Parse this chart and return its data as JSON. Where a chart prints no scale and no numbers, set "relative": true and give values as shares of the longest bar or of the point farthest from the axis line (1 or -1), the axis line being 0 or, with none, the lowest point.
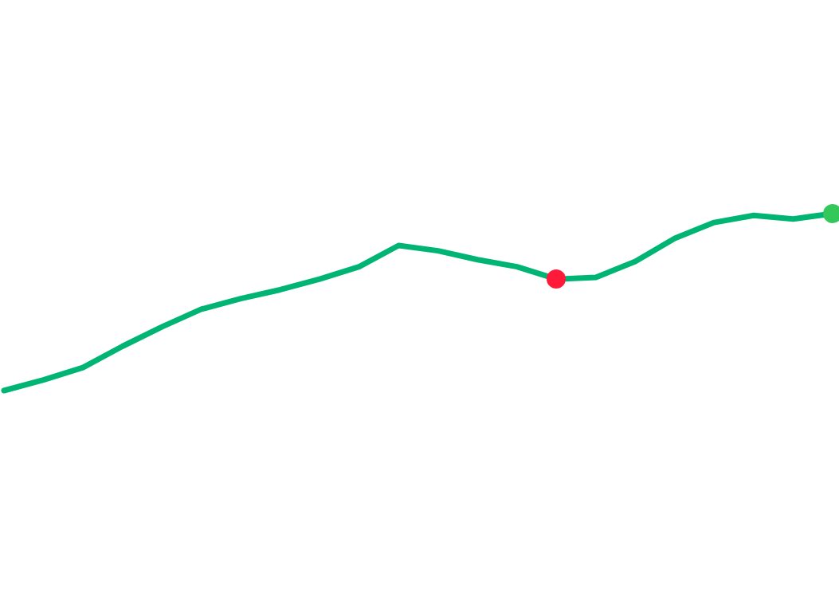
{
  "chart_data": {
    "type": "line",
    "relative": true,
    "categories": [
      null,
      null,
      null,
      null,
      null,
      null,
      null,
      null,
      null,
      null,
      null,
      null,
      null,
      null,
      null,
      null,
      null,
      null,
      null,
      null,
      null,
      null
    ],
    "grid": false,
    "legend": false,
    "marker": "none",
    "line_style": "solid",
    "series": [
      {
        "color": "#00b574",
        "values": [
          0,
          0.06,
          0.13,
          0.25,
          0.36,
          0.46,
          0.52,
          0.57,
          0.63,
          0.7,
          0.82,
          0.79,
          0.74,
          0.7,
          0.63,
          0.64,
          0.73,
          0.86,
          0.95,
          0.99,
          0.97,
          1
        ]
      }
    ]
  }
}
